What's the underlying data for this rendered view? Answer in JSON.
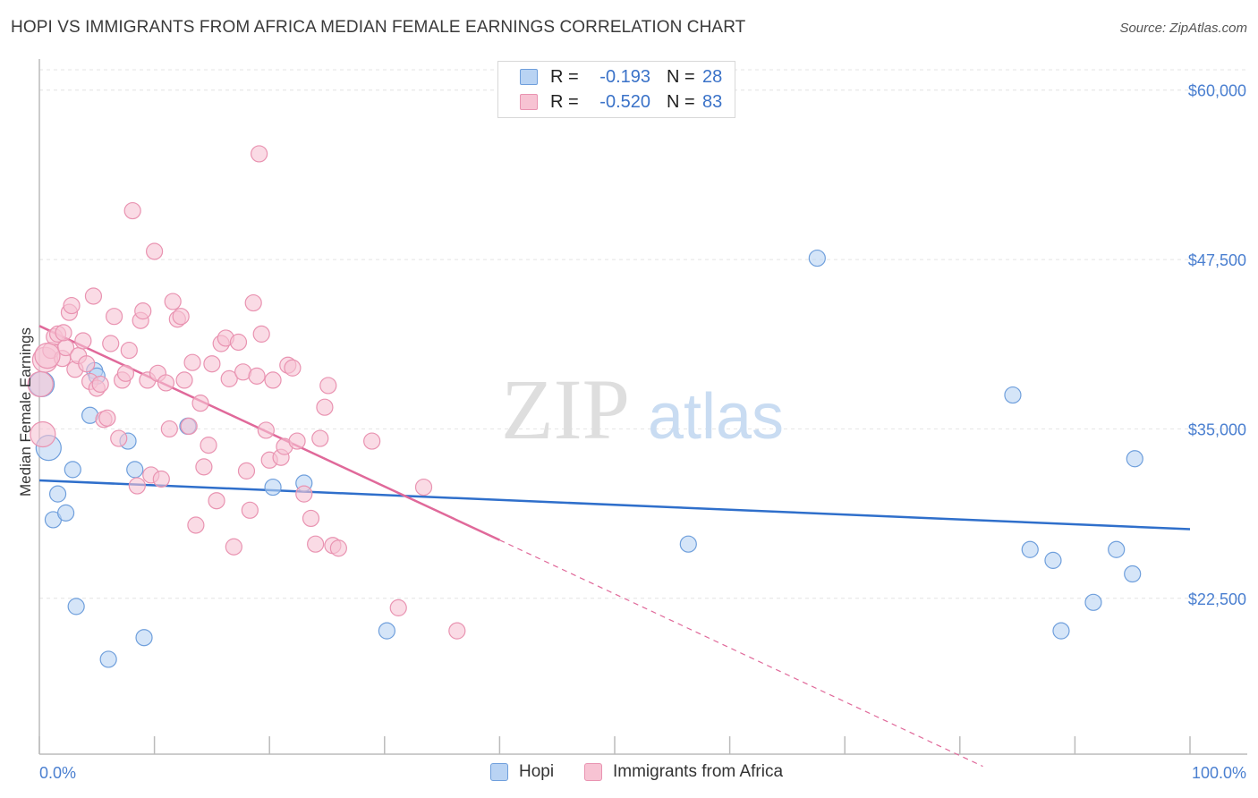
{
  "title": "HOPI VS IMMIGRANTS FROM AFRICA MEDIAN FEMALE EARNINGS CORRELATION CHART",
  "source": "Source: ZipAtlas.com",
  "watermark": {
    "zip": "ZIP",
    "atlas": "atlas"
  },
  "legend": {
    "rows": [
      {
        "r_label": "R =",
        "r_value": "-0.193",
        "n_label": "N =",
        "n_value": "28"
      },
      {
        "r_label": "R =",
        "r_value": "-0.520",
        "n_label": "N =",
        "n_value": "83"
      }
    ]
  },
  "bottom_legend": [
    "Hopi",
    "Immigrants from Africa"
  ],
  "colors": {
    "hopi_fill": "#b9d3f3",
    "hopi_stroke": "#6f9fdc",
    "hopi_line": "#2f6fcb",
    "africa_fill": "#f7c3d3",
    "africa_stroke": "#e993b1",
    "africa_line": "#e0699a",
    "grid": "#e4e4e4",
    "tick_text": "#4a7fd0"
  },
  "chart_data": {
    "type": "scatter",
    "title": "HOPI VS IMMIGRANTS FROM AFRICA MEDIAN FEMALE EARNINGS CORRELATION CHART",
    "xlabel": "",
    "ylabel": "Median Female Earnings",
    "xlim": [
      0,
      100
    ],
    "ylim": [
      11000,
      61500
    ],
    "x_tick_labels": [
      "0.0%",
      "100.0%"
    ],
    "y_ticks": [
      22500,
      35000,
      47500,
      60000
    ],
    "y_tick_labels": [
      "$22,500",
      "$35,000",
      "$47,500",
      "$60,000"
    ],
    "grid": true,
    "legend_position": "top-center",
    "series": [
      {
        "name": "Hopi",
        "points": [
          [
            0.2,
            38300
          ],
          [
            0.8,
            33600
          ],
          [
            1.2,
            28300
          ],
          [
            1.6,
            30200
          ],
          [
            2.3,
            28800
          ],
          [
            2.9,
            32000
          ],
          [
            3.2,
            21900
          ],
          [
            4.4,
            36000
          ],
          [
            4.8,
            39300
          ],
          [
            5.0,
            38900
          ],
          [
            6.0,
            18000
          ],
          [
            7.7,
            34100
          ],
          [
            8.3,
            32000
          ],
          [
            9.1,
            19600
          ],
          [
            12.9,
            35200
          ],
          [
            20.3,
            30700
          ],
          [
            23.0,
            31000
          ],
          [
            30.2,
            20100
          ],
          [
            56.4,
            26500
          ],
          [
            67.6,
            47600
          ],
          [
            84.6,
            37500
          ],
          [
            86.1,
            26100
          ],
          [
            88.1,
            25300
          ],
          [
            88.8,
            20100
          ],
          [
            91.6,
            22200
          ],
          [
            93.6,
            26100
          ],
          [
            95.0,
            24300
          ],
          [
            95.2,
            32800
          ]
        ],
        "trend": [
          [
            0,
            31200
          ],
          [
            100,
            27600
          ]
        ]
      },
      {
        "name": "Immigrants from Africa",
        "points": [
          [
            0.1,
            38300
          ],
          [
            0.3,
            34600
          ],
          [
            0.5,
            40100
          ],
          [
            1.0,
            40800
          ],
          [
            1.3,
            41800
          ],
          [
            1.6,
            42000
          ],
          [
            2.0,
            40200
          ],
          [
            2.3,
            41000
          ],
          [
            2.6,
            43600
          ],
          [
            2.8,
            44100
          ],
          [
            3.1,
            39400
          ],
          [
            3.4,
            40400
          ],
          [
            3.8,
            41500
          ],
          [
            4.1,
            39800
          ],
          [
            4.4,
            38500
          ],
          [
            4.7,
            44800
          ],
          [
            5.0,
            38000
          ],
          [
            5.3,
            38300
          ],
          [
            5.6,
            35700
          ],
          [
            5.9,
            35800
          ],
          [
            6.2,
            41300
          ],
          [
            6.5,
            43300
          ],
          [
            6.9,
            34300
          ],
          [
            7.2,
            38600
          ],
          [
            7.5,
            39100
          ],
          [
            7.8,
            40800
          ],
          [
            8.1,
            51100
          ],
          [
            8.5,
            30800
          ],
          [
            8.8,
            43000
          ],
          [
            9.0,
            43700
          ],
          [
            9.4,
            38600
          ],
          [
            9.7,
            31600
          ],
          [
            10.0,
            48100
          ],
          [
            10.3,
            39100
          ],
          [
            10.6,
            31300
          ],
          [
            11.0,
            38400
          ],
          [
            11.3,
            35000
          ],
          [
            11.6,
            44400
          ],
          [
            12.0,
            43100
          ],
          [
            12.3,
            43300
          ],
          [
            12.6,
            38600
          ],
          [
            13.0,
            35200
          ],
          [
            13.3,
            39900
          ],
          [
            13.6,
            27900
          ],
          [
            14.0,
            36900
          ],
          [
            14.3,
            32200
          ],
          [
            14.7,
            33800
          ],
          [
            15.0,
            39800
          ],
          [
            15.4,
            29700
          ],
          [
            15.8,
            41300
          ],
          [
            16.2,
            41700
          ],
          [
            16.5,
            38700
          ],
          [
            16.9,
            26300
          ],
          [
            17.3,
            41400
          ],
          [
            17.7,
            39200
          ],
          [
            18.0,
            31900
          ],
          [
            18.3,
            29000
          ],
          [
            18.6,
            44300
          ],
          [
            18.9,
            38900
          ],
          [
            19.3,
            42000
          ],
          [
            19.7,
            34900
          ],
          [
            20.0,
            32700
          ],
          [
            20.3,
            38600
          ],
          [
            19.1,
            55300
          ],
          [
            21.0,
            32900
          ],
          [
            21.3,
            33700
          ],
          [
            21.6,
            39700
          ],
          [
            22.0,
            39500
          ],
          [
            22.4,
            34100
          ],
          [
            23.0,
            30200
          ],
          [
            23.6,
            28400
          ],
          [
            24.0,
            26500
          ],
          [
            24.4,
            34300
          ],
          [
            24.8,
            36600
          ],
          [
            25.1,
            38200
          ],
          [
            25.5,
            26400
          ],
          [
            26.0,
            26200
          ],
          [
            28.9,
            34100
          ],
          [
            31.2,
            21800
          ],
          [
            33.4,
            30700
          ],
          [
            36.3,
            20100
          ],
          [
            0.7,
            40400
          ],
          [
            2.1,
            42100
          ]
        ],
        "trend": [
          [
            0,
            42600
          ],
          [
            40,
            26800
          ]
        ],
        "trend_dashed": [
          [
            40,
            26800
          ],
          [
            82,
            10100
          ]
        ]
      }
    ]
  }
}
